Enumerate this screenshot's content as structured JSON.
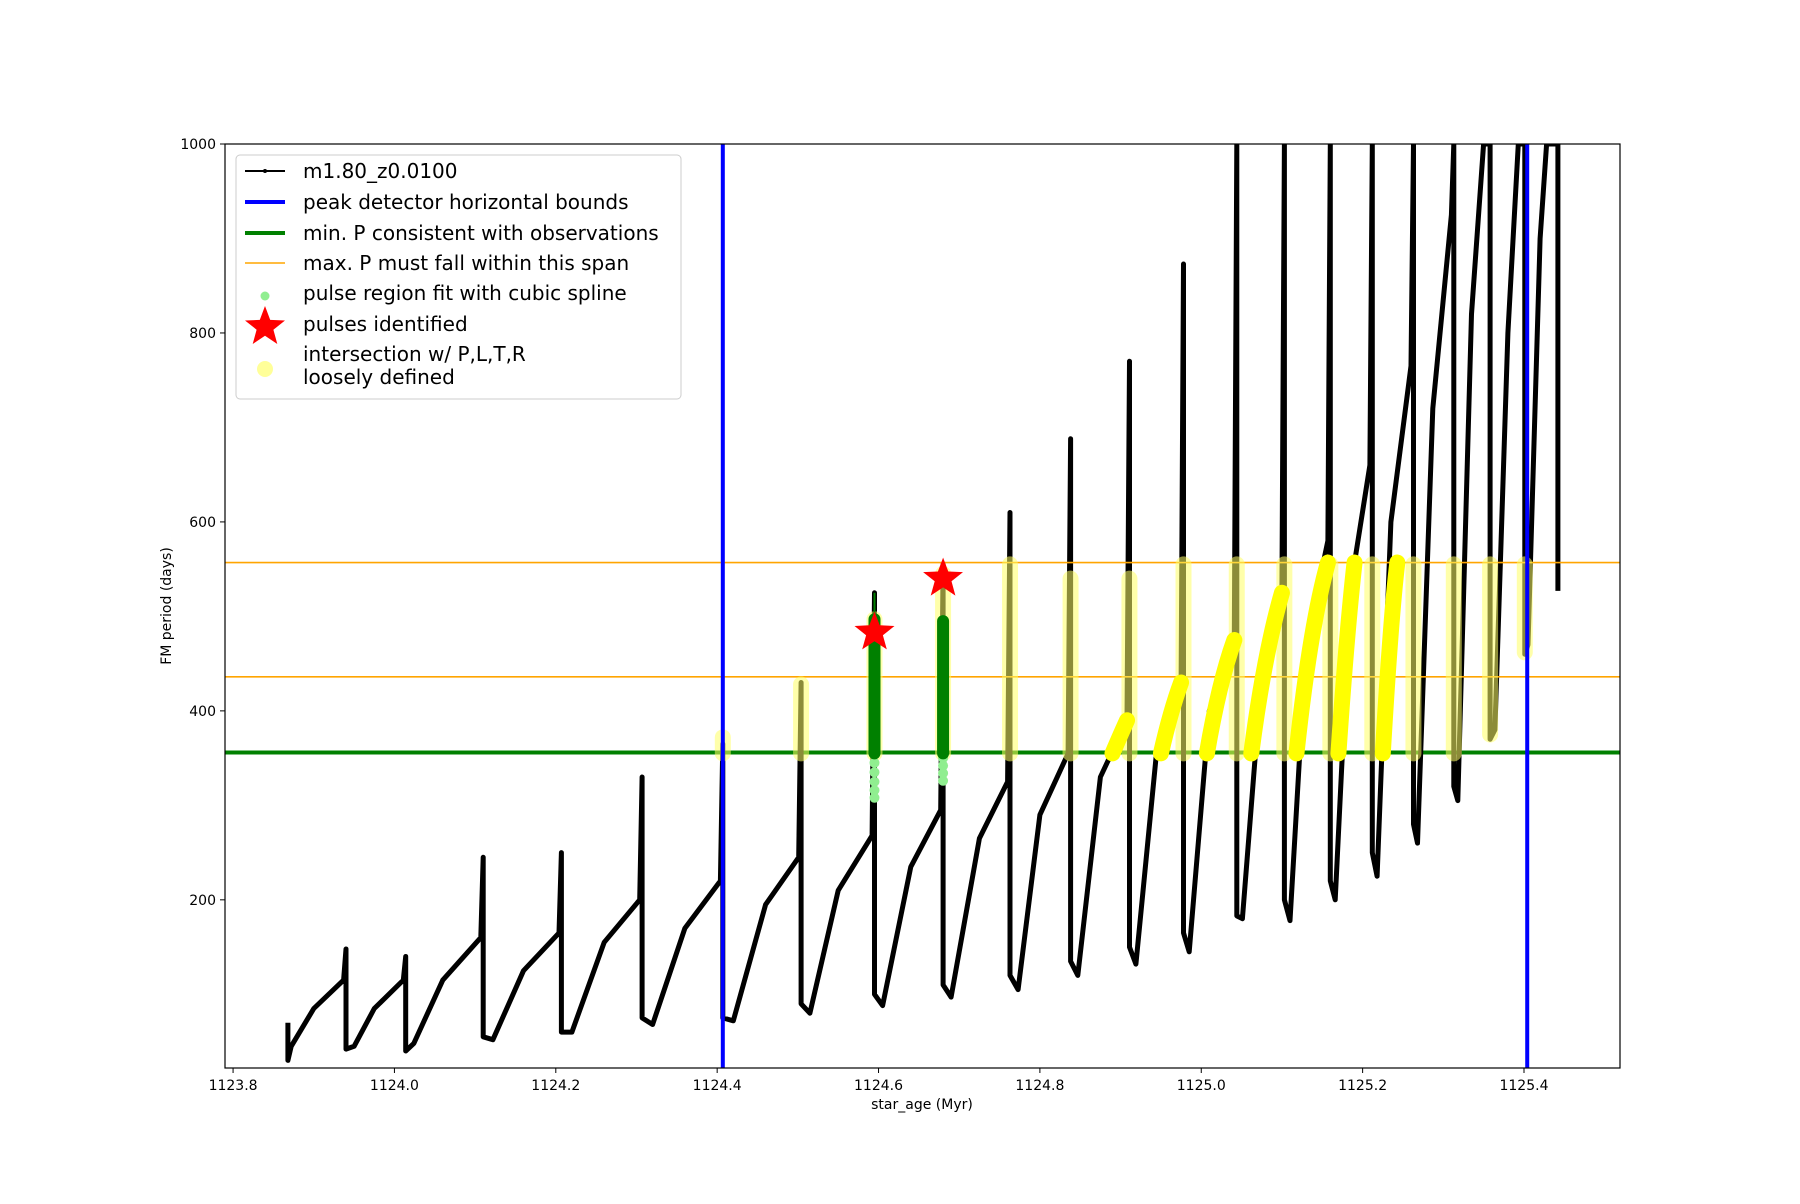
{
  "chart_data": {
    "type": "line",
    "xlabel": "star_age (Myr)",
    "ylabel": "FM period (days)",
    "xlim": [
      1123.79,
      1125.519
    ],
    "ylim": [
      22,
      1000
    ],
    "xticks": [
      "1123.8",
      "1124.0",
      "1124.2",
      "1124.4",
      "1124.6",
      "1124.8",
      "1125.0",
      "1125.2",
      "1125.4"
    ],
    "yticks": [
      "200",
      "400",
      "600",
      "800",
      "1000"
    ],
    "grid": false,
    "legend_placement": "upper-left",
    "legend": [
      {
        "label": "m1.80_z0.0100",
        "kind": "line-marker",
        "color": "#000000"
      },
      {
        "label": "peak detector horizontal bounds",
        "kind": "thick-line",
        "color": "#0000ff"
      },
      {
        "label": "min. P consistent with observations",
        "kind": "thick-line",
        "color": "#008000"
      },
      {
        "label": "max. P must fall within this span",
        "kind": "thin-line",
        "color": "#ffa500"
      },
      {
        "label": "pulse region fit with cubic spline",
        "kind": "dot",
        "color": "#90ee90"
      },
      {
        "label": "pulses identified",
        "kind": "star",
        "color": "#ff0000"
      },
      {
        "label": "intersection w/ P,L,T,R",
        "label2": "loosely defined",
        "kind": "circle",
        "color": "#ffff99"
      }
    ],
    "series_black": {
      "name": "m1.80_z0.0100",
      "color": "#000000",
      "points": [
        [
          1123.868,
          70
        ],
        [
          1123.868,
          30
        ],
        [
          1123.872,
          45
        ],
        [
          1123.9,
          85
        ],
        [
          1123.937,
          115
        ],
        [
          1123.94,
          148
        ],
        [
          1123.94,
          42
        ],
        [
          1123.95,
          45
        ],
        [
          1123.975,
          85
        ],
        [
          1124.011,
          115
        ],
        [
          1124.014,
          140
        ],
        [
          1124.014,
          40
        ],
        [
          1124.024,
          48
        ],
        [
          1124.06,
          115
        ],
        [
          1124.107,
          160
        ],
        [
          1124.11,
          245
        ],
        [
          1124.11,
          55
        ],
        [
          1124.122,
          52
        ],
        [
          1124.16,
          125
        ],
        [
          1124.204,
          165
        ],
        [
          1124.207,
          250
        ],
        [
          1124.207,
          60
        ],
        [
          1124.22,
          60
        ],
        [
          1124.26,
          155
        ],
        [
          1124.304,
          200
        ],
        [
          1124.307,
          330
        ],
        [
          1124.307,
          75
        ],
        [
          1124.32,
          68
        ],
        [
          1124.36,
          170
        ],
        [
          1124.404,
          220
        ],
        [
          1124.407,
          365
        ],
        [
          1124.407,
          75
        ],
        [
          1124.42,
          72
        ],
        [
          1124.46,
          195
        ],
        [
          1124.501,
          245
        ],
        [
          1124.504,
          430
        ],
        [
          1124.504,
          90
        ],
        [
          1124.515,
          80
        ],
        [
          1124.55,
          210
        ],
        [
          1124.592,
          268
        ],
        [
          1124.595,
          525
        ],
        [
          1124.595,
          100
        ],
        [
          1124.605,
          88
        ],
        [
          1124.64,
          235
        ],
        [
          1124.677,
          295
        ],
        [
          1124.68,
          555
        ],
        [
          1124.68,
          110
        ],
        [
          1124.69,
          97
        ],
        [
          1124.725,
          265
        ],
        [
          1124.76,
          325
        ],
        [
          1124.763,
          610
        ],
        [
          1124.763,
          120
        ],
        [
          1124.773,
          105
        ],
        [
          1124.8,
          290
        ],
        [
          1124.835,
          355
        ],
        [
          1124.838,
          688
        ],
        [
          1124.838,
          135
        ],
        [
          1124.847,
          120
        ],
        [
          1124.875,
          330
        ],
        [
          1124.908,
          390
        ],
        [
          1124.911,
          770
        ],
        [
          1124.911,
          150
        ],
        [
          1124.919,
          132
        ],
        [
          1124.945,
          360
        ],
        [
          1124.975,
          430
        ],
        [
          1124.978,
          873
        ],
        [
          1124.978,
          165
        ],
        [
          1124.985,
          145
        ],
        [
          1125.01,
          400
        ],
        [
          1125.041,
          475
        ],
        [
          1125.044,
          1000
        ],
        [
          1125.044,
          183
        ],
        [
          1125.051,
          180
        ],
        [
          1125.075,
          440
        ],
        [
          1125.1,
          525
        ],
        [
          1125.103,
          1000
        ],
        [
          1125.103,
          200
        ],
        [
          1125.11,
          178
        ],
        [
          1125.13,
          470
        ],
        [
          1125.157,
          580
        ],
        [
          1125.16,
          1000
        ],
        [
          1125.16,
          220
        ],
        [
          1125.166,
          200
        ],
        [
          1125.185,
          530
        ],
        [
          1125.209,
          660
        ],
        [
          1125.212,
          1000
        ],
        [
          1125.212,
          250
        ],
        [
          1125.218,
          225
        ],
        [
          1125.235,
          600
        ],
        [
          1125.26,
          765
        ],
        [
          1125.263,
          1000
        ],
        [
          1125.263,
          280
        ],
        [
          1125.268,
          260
        ],
        [
          1125.287,
          720
        ],
        [
          1125.31,
          925
        ],
        [
          1125.313,
          1000
        ],
        [
          1125.313,
          320
        ],
        [
          1125.318,
          305
        ],
        [
          1125.335,
          820
        ],
        [
          1125.35,
          1000
        ],
        [
          1125.358,
          1000
        ],
        [
          1125.358,
          370
        ],
        [
          1125.364,
          380
        ],
        [
          1125.38,
          800
        ],
        [
          1125.393,
          1000
        ],
        [
          1125.401,
          1000
        ],
        [
          1125.401,
          460
        ],
        [
          1125.405,
          470
        ],
        [
          1125.42,
          900
        ],
        [
          1125.428,
          1000
        ],
        [
          1125.442,
          1000
        ],
        [
          1125.442,
          527
        ]
      ]
    },
    "blue_vlines": {
      "color": "#0000ff",
      "x": [
        1124.407,
        1125.404
      ]
    },
    "green_hline": {
      "color": "#008000",
      "y": 356
    },
    "orange_hlines": {
      "color": "#ffa500",
      "y": [
        436,
        557
      ]
    },
    "yellow_spans": {
      "color": "#ffff66",
      "vertical": [
        [
          1124.407,
          355,
          372
        ],
        [
          1124.504,
          355,
          428
        ],
        [
          1124.595,
          355,
          497
        ],
        [
          1124.68,
          355,
          545
        ],
        [
          1124.763,
          355,
          555
        ],
        [
          1124.838,
          355,
          540
        ],
        [
          1124.911,
          355,
          540
        ],
        [
          1124.978,
          355,
          555
        ],
        [
          1125.044,
          355,
          555
        ],
        [
          1125.103,
          355,
          555
        ],
        [
          1125.16,
          355,
          555
        ],
        [
          1125.212,
          355,
          555
        ],
        [
          1125.263,
          355,
          555
        ],
        [
          1125.313,
          355,
          555
        ],
        [
          1125.358,
          375,
          555
        ],
        [
          1125.401,
          462,
          555
        ]
      ],
      "arcs": [
        [
          [
            1124.89,
            355
          ],
          [
            1124.9,
            375
          ],
          [
            1124.908,
            390
          ]
        ],
        [
          [
            1124.95,
            355
          ],
          [
            1124.962,
            400
          ],
          [
            1124.975,
            430
          ]
        ],
        [
          [
            1125.007,
            355
          ],
          [
            1125.022,
            430
          ],
          [
            1125.041,
            475
          ]
        ],
        [
          [
            1125.062,
            355
          ],
          [
            1125.078,
            460
          ],
          [
            1125.1,
            525
          ]
        ],
        [
          [
            1125.118,
            355
          ],
          [
            1125.135,
            490
          ],
          [
            1125.157,
            557
          ]
        ],
        [
          [
            1125.17,
            355
          ],
          [
            1125.18,
            480
          ],
          [
            1125.19,
            557
          ]
        ],
        [
          [
            1125.225,
            355
          ],
          [
            1125.235,
            500
          ],
          [
            1125.243,
            557
          ]
        ]
      ]
    },
    "green_spline": {
      "color": "#008000",
      "spans": [
        [
          1124.595,
          355,
          497
        ],
        [
          1124.68,
          355,
          495
        ]
      ],
      "needle": [
        1124.595,
        497,
        525
      ],
      "light_color": "#90ee90",
      "light_points": [
        [
          1124.595,
          345
        ],
        [
          1124.595,
          335
        ],
        [
          1124.595,
          325
        ],
        [
          1124.595,
          316
        ],
        [
          1124.595,
          308
        ],
        [
          1124.68,
          350
        ],
        [
          1124.68,
          342
        ],
        [
          1124.68,
          334
        ],
        [
          1124.68,
          326
        ]
      ]
    },
    "stars": {
      "color": "#ff0000",
      "points": [
        [
          1124.595,
          483
        ],
        [
          1124.68,
          540
        ]
      ]
    }
  }
}
